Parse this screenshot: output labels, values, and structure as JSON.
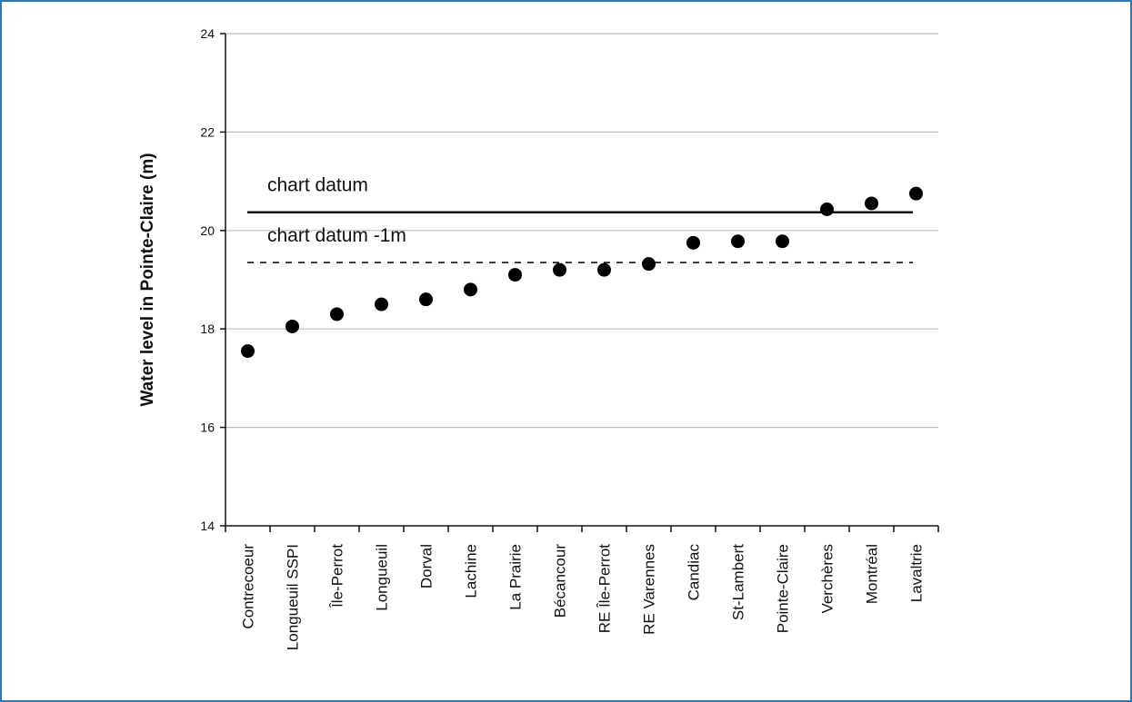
{
  "chart_data": {
    "type": "scatter",
    "title": "",
    "xlabel": "",
    "ylabel": "Water level in Pointe-Claire (m)",
    "ylim": [
      14,
      24
    ],
    "yticks": [
      "14",
      "16",
      "18",
      "20",
      "22",
      "24"
    ],
    "grid": true,
    "categories": [
      "Contrecoeur",
      "Longueuil SSPI",
      "Île-Perrot",
      "Longueuil",
      "Dorval",
      "Lachine",
      "La Prairie",
      "Bécancour",
      "RE Île-Perrot",
      "RE Varennes",
      "Candiac",
      "St-Lambert",
      "Pointe-Claire",
      "Verchères",
      "Montréal",
      "Lavaltrie"
    ],
    "values": [
      17.55,
      18.05,
      18.3,
      18.5,
      18.6,
      18.8,
      19.1,
      19.2,
      19.2,
      19.32,
      19.75,
      19.78,
      19.78,
      20.43,
      20.55,
      20.75
    ],
    "reference_lines": [
      {
        "label": "chart datum",
        "value": 20.37,
        "style": "solid"
      },
      {
        "label": "chart datum -1m",
        "value": 19.35,
        "style": "dashed"
      }
    ]
  },
  "colors": {
    "border": "#1f7dc4",
    "grid": "#bdbdbd",
    "axis": "#111111",
    "points": "#000000"
  }
}
